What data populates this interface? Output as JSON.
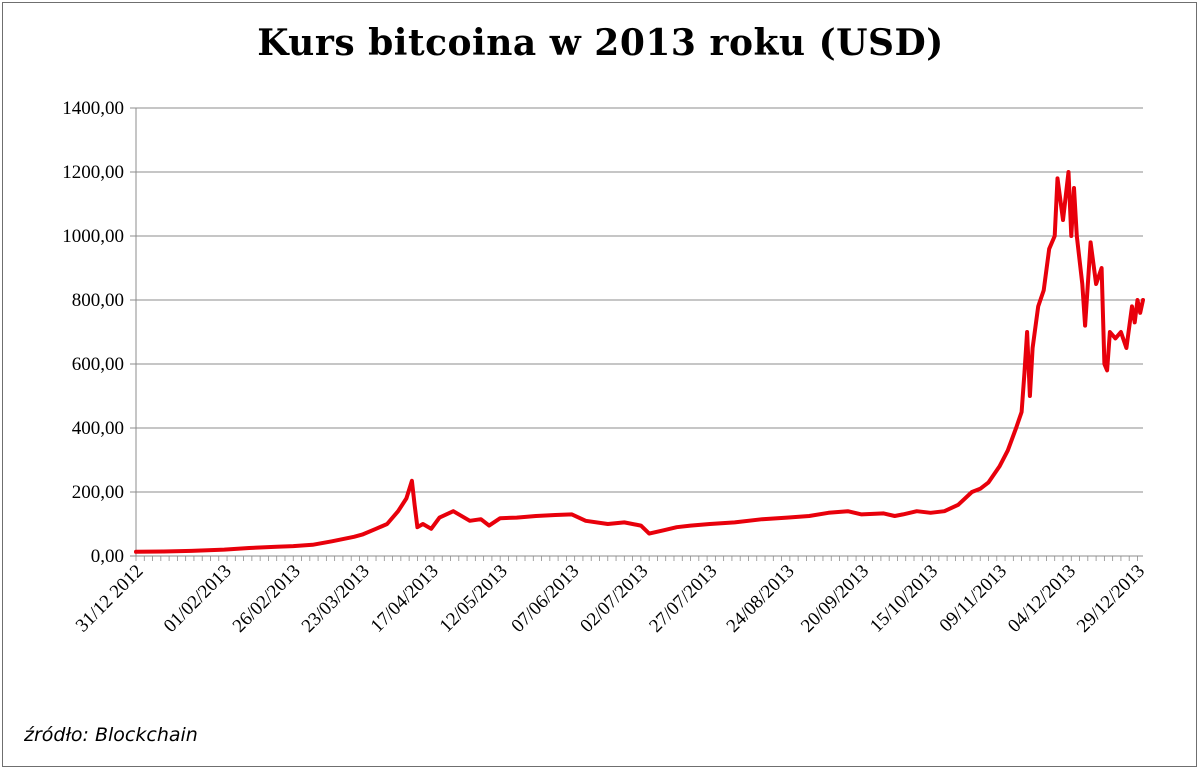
{
  "source_note": "źródło: Blockchain",
  "colors": {
    "series": "#e8000b",
    "grid": "#8c8c8c",
    "axis": "#8c8c8c"
  },
  "chart_data": {
    "type": "line",
    "title": "Kurs bitcoina w 2013 roku (USD)",
    "xlabel": "",
    "ylabel": "",
    "ylim": [
      0,
      1400
    ],
    "grid": true,
    "legend": "none",
    "y_ticks": [
      "0,00",
      "200,00",
      "400,00",
      "600,00",
      "800,00",
      "1000,00",
      "1200,00",
      "1400,00"
    ],
    "x_ticks": [
      "31/12 2012",
      "01/02/2013",
      "26/02/2013",
      "23/03/2013",
      "17/04/2013",
      "12/05/2013",
      "07/06/2013",
      "02/07/2013",
      "27/07/2013",
      "24/08/2013",
      "20/09/2013",
      "15/10/2013",
      "09/11/2013",
      "04/12/2013",
      "29/12/2013"
    ],
    "x_range": [
      "31/12/2012",
      "31/12/2013"
    ],
    "series": [
      {
        "x": [
          "31/12/2012",
          "10/01/2013",
          "20/01/2013",
          "01/02/2013",
          "10/02/2013",
          "20/02/2013",
          "26/02/2013",
          "05/03/2013",
          "12/03/2013",
          "20/03/2013",
          "23/03/2013",
          "28/03/2013",
          "01/04/2013",
          "05/04/2013",
          "08/04/2013",
          "10/04/2013",
          "11/04/2013",
          "12/04/2013",
          "14/04/2013",
          "17/04/2013",
          "20/04/2013",
          "25/04/2013",
          "01/05/2013",
          "05/05/2013",
          "08/05/2013",
          "12/05/2013",
          "18/05/2013",
          "25/05/2013",
          "01/06/2013",
          "07/06/2013",
          "12/06/2013",
          "20/06/2013",
          "26/06/2013",
          "02/07/2013",
          "05/07/2013",
          "10/07/2013",
          "15/07/2013",
          "20/07/2013",
          "27/07/2013",
          "05/08/2013",
          "15/08/2013",
          "24/08/2013",
          "01/09/2013",
          "08/09/2013",
          "15/09/2013",
          "20/09/2013",
          "28/09/2013",
          "02/10/2013",
          "05/10/2013",
          "10/10/2013",
          "15/10/2013",
          "20/10/2013",
          "25/10/2013",
          "30/10/2013",
          "02/11/2013",
          "05/11/2013",
          "09/11/2013",
          "12/11/2013",
          "15/11/2013",
          "17/11/2013",
          "18/11/2013",
          "19/11/2013",
          "20/11/2013",
          "21/11/2013",
          "23/11/2013",
          "25/11/2013",
          "27/11/2013",
          "29/11/2013",
          "30/11/2013",
          "02/12/2013",
          "04/12/2013",
          "05/12/2013",
          "06/12/2013",
          "07/12/2013",
          "09/12/2013",
          "10/12/2013",
          "12/12/2013",
          "14/12/2013",
          "16/12/2013",
          "17/12/2013",
          "18/12/2013",
          "19/12/2013",
          "21/12/2013",
          "23/12/2013",
          "25/12/2013",
          "27/12/2013",
          "28/12/2013",
          "29/12/2013",
          "30/12/2013",
          "31/12/2013"
        ],
        "values": [
          13,
          14,
          16,
          20,
          25,
          29,
          31,
          35,
          46,
          60,
          67,
          85,
          100,
          140,
          180,
          235,
          160,
          90,
          100,
          85,
          120,
          140,
          110,
          115,
          95,
          118,
          120,
          125,
          128,
          130,
          110,
          100,
          105,
          95,
          70,
          80,
          90,
          95,
          100,
          105,
          115,
          120,
          125,
          135,
          140,
          130,
          133,
          125,
          130,
          140,
          135,
          140,
          160,
          200,
          210,
          230,
          280,
          330,
          400,
          450,
          570,
          700,
          500,
          650,
          780,
          830,
          960,
          1000,
          1180,
          1050,
          1200,
          1000,
          1150,
          1000,
          850,
          720,
          980,
          850,
          900,
          600,
          580,
          700,
          680,
          700,
          650,
          780,
          730,
          800,
          760,
          800
        ]
      }
    ]
  }
}
